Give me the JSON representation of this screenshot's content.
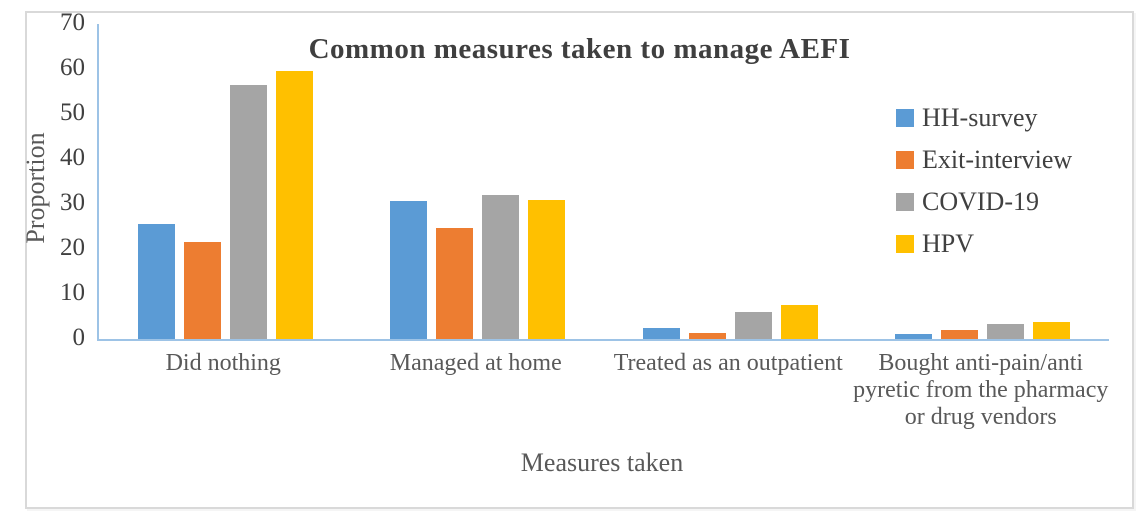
{
  "chart_data": {
    "type": "bar",
    "title": "Common measures taken to manage AEFI",
    "xlabel": "Measures taken",
    "ylabel": "Proportion",
    "ylim": [
      0,
      70
    ],
    "yticks": [
      0,
      10,
      20,
      30,
      40,
      50,
      60,
      70
    ],
    "grid": false,
    "legend_position": "right",
    "categories": [
      "Did nothing",
      "Managed at home",
      "Treated as an outpatient",
      "Bought anti-pain/anti pyretic from the pharmacy or drug vendors"
    ],
    "series": [
      {
        "name": "HH-survey",
        "color": "#5b9bd5",
        "values": [
          25.5,
          30.7,
          2.5,
          1.2
        ]
      },
      {
        "name": "Exit-interview",
        "color": "#ed7d31",
        "values": [
          21.5,
          24.7,
          1.4,
          2.1
        ]
      },
      {
        "name": "COVID-19",
        "color": "#a5a5a5",
        "values": [
          56.5,
          32.0,
          5.9,
          3.4
        ]
      },
      {
        "name": "HPV",
        "color": "#ffc000",
        "values": [
          59.5,
          31.0,
          7.6,
          3.8
        ]
      }
    ]
  },
  "colors": {
    "axis_line": "#9dc3e6",
    "frame_border": "#d9d9d9",
    "title_text": "#3f3f3f",
    "tick_text": "#404040",
    "category_text": "#595959"
  }
}
